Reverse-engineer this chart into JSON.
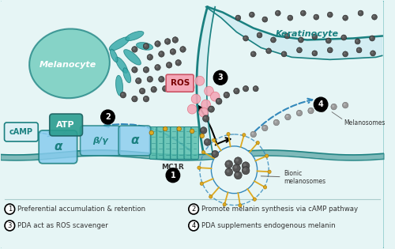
{
  "bg_color": "#e6f5f5",
  "border_color": "#4aabab",
  "melanocyte_color": "#5abfbf",
  "melanocyte_text": "Melanocyte",
  "keratinocyte_color": "#c5e8f0",
  "keratinocyte_text": "Keratinocyte",
  "atp_color": "#2a9d8f",
  "atp_text": "ATP",
  "camp_text": "cAMP",
  "alpha_text": "α",
  "ros_text": "ROS",
  "mc1r_text": "MC1R",
  "bionic_text": "Bionic\nmelanosomes",
  "melanosomes_text": "Melanosomes",
  "legend": [
    "¹ Preferential accumulation & retention",
    "² Promote melanin synthesis via cAMP pathway",
    "³ PDA act as ROS scavenger",
    "⁴ PDA supplements endogenous melanin"
  ],
  "dark_gray": "#333333",
  "medium_gray": "#666666",
  "teal_dark": "#1a8080",
  "teal_mid": "#3aabab",
  "teal_light": "#7acccc",
  "teal_fill": "#b8e8e8",
  "pink_ros": "#f4a8b8",
  "dark_sphere": "#555555",
  "dashed_blue": "#3388bb",
  "gold_color": "#ddaa22",
  "helix_color": "#5abfaf"
}
